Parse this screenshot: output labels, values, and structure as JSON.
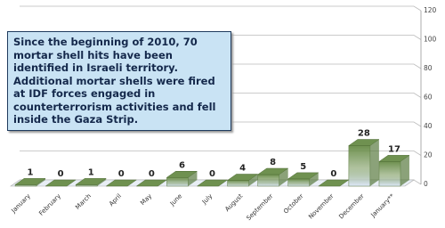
{
  "chart_data": {
    "type": "bar3d",
    "annotation": "Since the beginning of 2010, 70 mortar shell hits have been identified in Israeli territory. Additional mortar shells were fired at IDF forces engaged in counterterrorism activities and fell inside the Gaza Strip.",
    "categories": [
      "January",
      "February",
      "March",
      "April",
      "May",
      "June",
      "July",
      "August",
      "September",
      "October",
      "November",
      "December",
      "January**"
    ],
    "values": [
      1,
      0,
      1,
      0,
      0,
      6,
      0,
      4,
      8,
      5,
      0,
      28,
      17
    ],
    "color": "#6f9150",
    "ylim": [
      0,
      120
    ],
    "yticks": [
      0,
      20,
      40,
      60,
      80,
      100,
      120
    ],
    "grid": true
  }
}
